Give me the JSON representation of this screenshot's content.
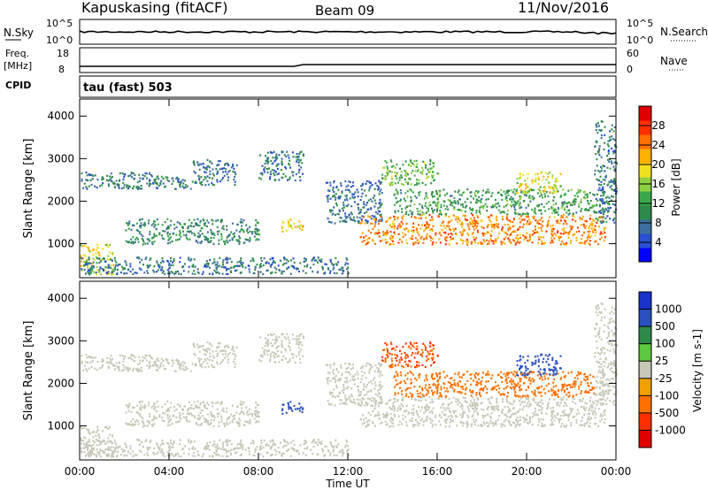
{
  "header": {
    "station": "Kapuskasing (fitACF)",
    "beam": "Beam 09",
    "date": "11/Nov/2016"
  },
  "noise_panel": {
    "left_label": "N.Sky",
    "left_ticks": [
      "10^5",
      "10^0"
    ],
    "right_label": "N.Search",
    "right_ticks": [
      "10^5",
      "10^0"
    ]
  },
  "freq_panel": {
    "left_label_1": "Freq.",
    "left_label_2": "[MHz]",
    "left_ticks": [
      "18",
      "8"
    ],
    "right_label": "Nave",
    "right_ticks": [
      "60",
      "0"
    ]
  },
  "cpid_panel": {
    "label": "CPID",
    "text": "tau (fast) 503"
  },
  "colors": {
    "power_scale": [
      "#0000ff",
      "#2a4fd0",
      "#3d6f9e",
      "#2f8a4a",
      "#3aa84a",
      "#8fd040",
      "#f0e020",
      "#ffb000",
      "#ff7000",
      "#ff3000",
      "#e00000"
    ],
    "velocity_scale": [
      "#1a32c8",
      "#2a50c0",
      "#2f8a4a",
      "#5dc840",
      "#c8c8b8",
      "#f0a000",
      "#ff7000",
      "#ff3000",
      "#e00000"
    ],
    "ground_scatter": "#c8c8b8"
  },
  "chart_data": [
    {
      "type": "heatmap",
      "name": "power",
      "ylabel": "Slant Range [km]",
      "yticks": [
        "4000",
        "3000",
        "2000",
        "1000"
      ],
      "ylim": [
        200,
        4400
      ],
      "xlim": [
        0,
        24
      ],
      "colorbar": {
        "label": "Power [dB]",
        "ticks": [
          "28",
          "24",
          "20",
          "16",
          "12",
          "8",
          "4"
        ],
        "range": [
          0,
          32
        ]
      },
      "regions": [
        {
          "x": [
            0.0,
            1.5
          ],
          "y": [
            300,
            1000
          ],
          "level": 18
        },
        {
          "x": [
            0.0,
            3.5
          ],
          "y": [
            2300,
            2700
          ],
          "level": 8
        },
        {
          "x": [
            3.0,
            5.0
          ],
          "y": [
            2300,
            2600
          ],
          "level": 9
        },
        {
          "x": [
            5.0,
            7.0
          ],
          "y": [
            2400,
            3000
          ],
          "level": 8
        },
        {
          "x": [
            8.0,
            10.0
          ],
          "y": [
            2500,
            3200
          ],
          "level": 8
        },
        {
          "x": [
            2.0,
            8.0
          ],
          "y": [
            1000,
            1600
          ],
          "level": 10
        },
        {
          "x": [
            9.0,
            10.0
          ],
          "y": [
            1300,
            1600
          ],
          "level": 20
        },
        {
          "x": [
            0.0,
            12.0
          ],
          "y": [
            300,
            700
          ],
          "level": 8
        },
        {
          "x": [
            11.0,
            13.5
          ],
          "y": [
            1500,
            2500
          ],
          "level": 7
        },
        {
          "x": [
            12.5,
            23.5
          ],
          "y": [
            1000,
            1700
          ],
          "level": 24
        },
        {
          "x": [
            14.0,
            23.0
          ],
          "y": [
            1700,
            2300
          ],
          "level": 12
        },
        {
          "x": [
            13.5,
            16.0
          ],
          "y": [
            2400,
            3000
          ],
          "level": 14
        },
        {
          "x": [
            19.5,
            21.5
          ],
          "y": [
            2200,
            2700
          ],
          "level": 18
        },
        {
          "x": [
            23.0,
            24.0
          ],
          "y": [
            1500,
            3900
          ],
          "level": 8
        }
      ]
    },
    {
      "type": "heatmap",
      "name": "velocity",
      "ylabel": "Slant Range [km]",
      "yticks": [
        "4000",
        "3000",
        "2000",
        "1000"
      ],
      "ylim": [
        200,
        4400
      ],
      "xlim": [
        0,
        24
      ],
      "xlabel": "Time UT",
      "xticks": [
        "00:00",
        "04:00",
        "08:00",
        "12:00",
        "16:00",
        "20:00",
        "00:00"
      ],
      "colorbar": {
        "label": "Velocity [m s-1]",
        "ticks": [
          "1000",
          "500",
          "100",
          "25",
          "-25",
          "-100",
          "-500",
          "-1000"
        ],
        "range": [
          -1200,
          1200
        ]
      },
      "regions": [
        {
          "x": [
            0.0,
            1.5
          ],
          "y": [
            300,
            1000
          ],
          "level": 0
        },
        {
          "x": [
            0.0,
            3.5
          ],
          "y": [
            2300,
            2700
          ],
          "level": 0
        },
        {
          "x": [
            3.0,
            5.0
          ],
          "y": [
            2300,
            2600
          ],
          "level": 0
        },
        {
          "x": [
            5.0,
            7.0
          ],
          "y": [
            2400,
            3000
          ],
          "level": 0
        },
        {
          "x": [
            8.0,
            10.0
          ],
          "y": [
            2500,
            3200
          ],
          "level": 0
        },
        {
          "x": [
            2.0,
            8.0
          ],
          "y": [
            1000,
            1600
          ],
          "level": 0
        },
        {
          "x": [
            9.0,
            10.0
          ],
          "y": [
            1300,
            1600
          ],
          "level": 150
        },
        {
          "x": [
            0.0,
            12.0
          ],
          "y": [
            300,
            700
          ],
          "level": 0
        },
        {
          "x": [
            11.0,
            13.5
          ],
          "y": [
            1500,
            2500
          ],
          "level": 0
        },
        {
          "x": [
            12.5,
            23.5
          ],
          "y": [
            1000,
            1700
          ],
          "level": 0
        },
        {
          "x": [
            14.0,
            23.0
          ],
          "y": [
            1700,
            2300
          ],
          "level": -150
        },
        {
          "x": [
            13.5,
            16.0
          ],
          "y": [
            2400,
            3000
          ],
          "level": -300
        },
        {
          "x": [
            19.5,
            21.5
          ],
          "y": [
            2200,
            2700
          ],
          "level": 200
        },
        {
          "x": [
            23.0,
            24.0
          ],
          "y": [
            1500,
            3900
          ],
          "level": 0
        }
      ]
    }
  ]
}
